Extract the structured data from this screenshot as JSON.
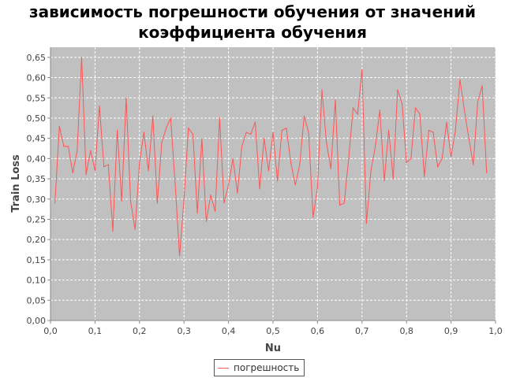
{
  "chart_data": {
    "type": "line",
    "title": [
      "зависимость погрешности обучения от значений",
      "коэффициента обучения"
    ],
    "xlabel": "Nu",
    "ylabel": "Train Loss",
    "xlim": [
      0.0,
      1.0
    ],
    "ylim": [
      0.0,
      0.675
    ],
    "xticks": [
      "0,0",
      "0,1",
      "0,2",
      "0,3",
      "0,4",
      "0,5",
      "0,6",
      "0,7",
      "0,8",
      "0,9",
      "1,0"
    ],
    "yticks": [
      "0,00",
      "0,05",
      "0,10",
      "0,15",
      "0,20",
      "0,25",
      "0,30",
      "0,35",
      "0,40",
      "0,45",
      "0,50",
      "0,55",
      "0,60",
      "0,65"
    ],
    "grid": true,
    "legend_position": "bottom-center",
    "background": "#c0c0c0",
    "series": [
      {
        "name": "погрешность",
        "color": "#ff5555",
        "x": [
          0.01,
          0.02,
          0.03,
          0.04,
          0.05,
          0.06,
          0.07,
          0.08,
          0.09,
          0.1,
          0.11,
          0.12,
          0.13,
          0.14,
          0.15,
          0.16,
          0.17,
          0.18,
          0.19,
          0.2,
          0.21,
          0.22,
          0.23,
          0.24,
          0.25,
          0.26,
          0.27,
          0.28,
          0.29,
          0.3,
          0.31,
          0.32,
          0.33,
          0.34,
          0.35,
          0.36,
          0.37,
          0.38,
          0.39,
          0.4,
          0.41,
          0.42,
          0.43,
          0.44,
          0.45,
          0.46,
          0.47,
          0.48,
          0.49,
          0.5,
          0.51,
          0.52,
          0.53,
          0.54,
          0.55,
          0.56,
          0.57,
          0.58,
          0.59,
          0.6,
          0.61,
          0.62,
          0.63,
          0.64,
          0.65,
          0.66,
          0.67,
          0.68,
          0.69,
          0.7,
          0.71,
          0.72,
          0.73,
          0.74,
          0.75,
          0.76,
          0.77,
          0.78,
          0.79,
          0.8,
          0.81,
          0.82,
          0.83,
          0.84,
          0.85,
          0.86,
          0.87,
          0.88,
          0.89,
          0.9,
          0.91,
          0.92,
          0.93,
          0.94,
          0.95,
          0.96,
          0.97,
          0.98
        ],
        "y": [
          0.29,
          0.48,
          0.43,
          0.43,
          0.365,
          0.42,
          0.65,
          0.36,
          0.42,
          0.37,
          0.53,
          0.38,
          0.385,
          0.22,
          0.47,
          0.295,
          0.55,
          0.295,
          0.225,
          0.39,
          0.465,
          0.37,
          0.505,
          0.29,
          0.44,
          0.475,
          0.5,
          0.34,
          0.16,
          0.3,
          0.475,
          0.46,
          0.265,
          0.45,
          0.245,
          0.31,
          0.27,
          0.5,
          0.29,
          0.335,
          0.4,
          0.315,
          0.43,
          0.465,
          0.46,
          0.49,
          0.325,
          0.45,
          0.37,
          0.465,
          0.345,
          0.47,
          0.475,
          0.39,
          0.335,
          0.385,
          0.505,
          0.465,
          0.255,
          0.33,
          0.57,
          0.44,
          0.375,
          0.545,
          0.285,
          0.29,
          0.4,
          0.525,
          0.51,
          0.62,
          0.24,
          0.37,
          0.43,
          0.52,
          0.345,
          0.47,
          0.35,
          0.57,
          0.535,
          0.39,
          0.4,
          0.525,
          0.51,
          0.355,
          0.47,
          0.465,
          0.38,
          0.4,
          0.49,
          0.405,
          0.47,
          0.595,
          0.52,
          0.45,
          0.385,
          0.54,
          0.58,
          0.365
        ]
      }
    ]
  }
}
